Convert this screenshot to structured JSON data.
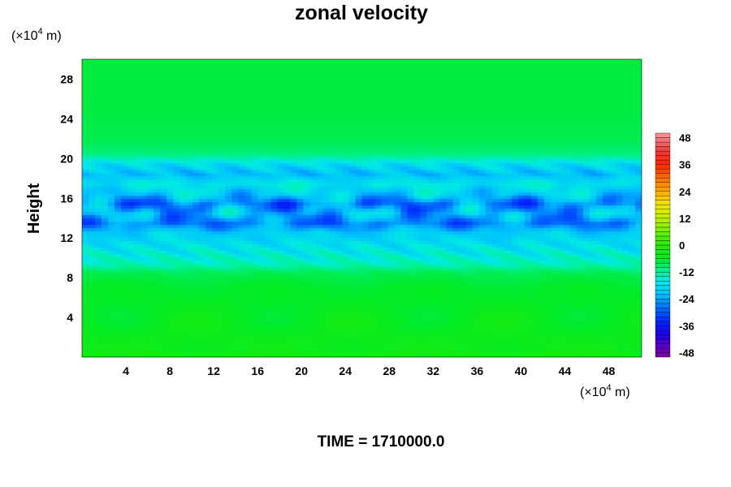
{
  "chart_data": {
    "type": "heatmap",
    "title": "zonal velocity",
    "ylabel": "Height",
    "xlabel": "",
    "x_unit_prefix": "(×10",
    "x_unit_exp": "4",
    "x_unit_suffix": " m)",
    "y_unit_prefix": "(×10",
    "y_unit_exp": "4",
    "y_unit_suffix": " m)",
    "xlim": [
      0,
      51
    ],
    "ylim": [
      0,
      30
    ],
    "x_ticks": [
      4,
      8,
      12,
      16,
      20,
      24,
      28,
      32,
      36,
      40,
      44,
      48
    ],
    "y_ticks": [
      4,
      8,
      12,
      16,
      20,
      24,
      28
    ],
    "colorbar": {
      "range": [
        -50,
        50
      ],
      "ticks": [
        48,
        36,
        24,
        12,
        0,
        -12,
        -24,
        -36,
        -48
      ],
      "colormap": "rainbow (purple-blue-cyan-green-yellow-orange-red-pink)"
    },
    "field_profile": [
      {
        "height": 1,
        "value": -4
      },
      {
        "height": 4,
        "value": -5
      },
      {
        "height": 7,
        "value": -6
      },
      {
        "height": 8.5,
        "value": -8
      },
      {
        "height": 9.5,
        "value": -14
      },
      {
        "height": 11,
        "value": -17
      },
      {
        "height": 12.5,
        "value": -20
      },
      {
        "height": 13.5,
        "value": -27
      },
      {
        "height": 14.5,
        "value": -23
      },
      {
        "height": 15.5,
        "value": -27
      },
      {
        "height": 16.5,
        "value": -20
      },
      {
        "height": 17.5,
        "value": -17
      },
      {
        "height": 18.5,
        "value": -22
      },
      {
        "height": 19.5,
        "value": -18
      },
      {
        "height": 20.5,
        "value": -10
      },
      {
        "height": 22,
        "value": -8
      },
      {
        "height": 26,
        "value": -7
      },
      {
        "height": 30,
        "value": -7
      }
    ],
    "min_value_approx": -36
  },
  "footer": {
    "time_label": "TIME = 1710000.0"
  },
  "colors": {
    "background": "#ffffff",
    "axis": "#000000"
  }
}
